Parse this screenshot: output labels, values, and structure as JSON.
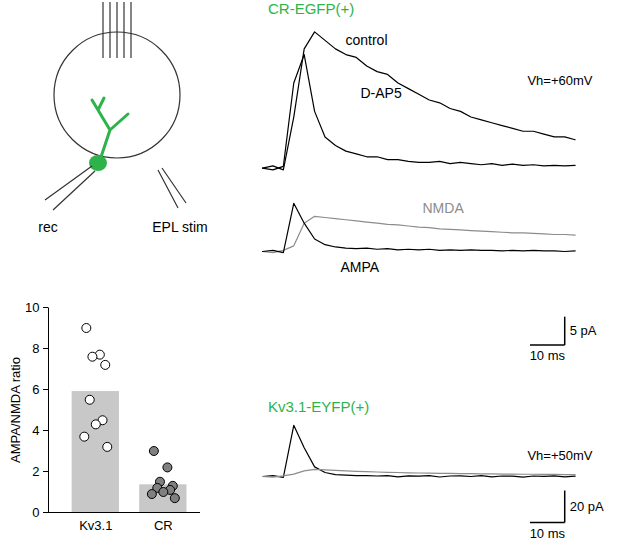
{
  "diagram": {
    "recording_label": "rec",
    "stimulation_label": "EPL stim"
  },
  "chart_data": [
    {
      "type": "bar",
      "categories": [
        "Kv3.1",
        "CR"
      ],
      "values": [
        5.9,
        1.35
      ],
      "color": "#c8c8c8",
      "individual_values": [
        [
          9.0,
          7.7,
          7.6,
          7.2,
          5.5,
          4.5,
          4.3,
          3.7,
          3.2
        ],
        [
          3.0,
          2.2,
          1.5,
          1.3,
          1.2,
          1.1,
          1.0,
          0.9,
          0.7
        ]
      ],
      "ylabel": "AMPA/NMDA ratio",
      "ylim": [
        0,
        10
      ],
      "yticks": [
        0,
        2,
        4,
        6,
        8,
        10
      ]
    },
    {
      "type": "line",
      "title": "CR-EGFP(+)",
      "x": [
        0,
        3,
        6,
        9,
        12,
        15,
        18,
        21,
        24,
        27,
        30,
        33,
        36,
        39,
        42,
        45,
        48,
        51,
        54,
        57,
        60,
        63,
        66,
        69,
        72,
        75,
        78,
        81,
        84,
        87,
        90
      ],
      "series": [
        {
          "name": "control",
          "color": "#000000",
          "values": [
            0,
            0.4,
            -0.3,
            9,
            21,
            24,
            22.5,
            21,
            20,
            19.5,
            18,
            17,
            16.5,
            15,
            14,
            13,
            12,
            11.5,
            10.5,
            10,
            9,
            8.5,
            8,
            7.5,
            7,
            6.5,
            6.5,
            6,
            5.5,
            5.5,
            5
          ]
        },
        {
          "name": "D-AP5",
          "color": "#000000",
          "values": [
            0,
            -0.3,
            0.3,
            15,
            20,
            10,
            5.5,
            4,
            3,
            2.5,
            2,
            2,
            1.5,
            1.5,
            1.2,
            1,
            1,
            1.2,
            0.8,
            1,
            0.8,
            0.6,
            0.8,
            0.5,
            0.7,
            0.5,
            0.6,
            0.4,
            0.5,
            0.4,
            0.5
          ]
        }
      ],
      "annotations": [
        "Vh=+60mV"
      ],
      "xlim": [
        0,
        95
      ],
      "ylim": [
        -2,
        26
      ],
      "tick_labels": false
    },
    {
      "type": "line",
      "x": [
        0,
        3,
        6,
        9,
        12,
        15,
        18,
        21,
        24,
        27,
        30,
        33,
        36,
        39,
        42,
        45,
        48,
        51,
        54,
        57,
        60,
        63,
        66,
        69,
        72,
        75,
        78,
        81,
        84,
        87,
        90
      ],
      "series": [
        {
          "name": "NMDA",
          "color": "#8c8c8c",
          "values": [
            0,
            -0.2,
            0.2,
            1,
            5,
            6.2,
            6,
            5.8,
            5.6,
            5.4,
            5.2,
            5,
            4.8,
            4.7,
            4.5,
            4.3,
            4.2,
            4,
            3.9,
            3.8,
            3.7,
            3.6,
            3.5,
            3.4,
            3.3,
            3.3,
            3.2,
            3.1,
            3,
            3,
            2.9
          ]
        },
        {
          "name": "AMPA",
          "color": "#000000",
          "values": [
            0,
            0.2,
            -0.2,
            8.5,
            5,
            2.2,
            1.2,
            0.8,
            0.6,
            0.5,
            0.6,
            0.4,
            0.5,
            0.3,
            0.4,
            0.3,
            0.4,
            0.2,
            0.3,
            0.2,
            0.3,
            0.2,
            0.2,
            0.1,
            0.2,
            0.1,
            0.2,
            0.1,
            0.1,
            0,
            0.1
          ]
        }
      ],
      "xlim": [
        0,
        95
      ],
      "ylim": [
        -21,
        9
      ],
      "tick_labels": false,
      "scale_bar": {
        "x": 10,
        "x_label": "10 ms",
        "y": 5,
        "y_label": "5 pA"
      }
    },
    {
      "type": "line",
      "title": "Kv3.1-EYFP(+)",
      "x": [
        0,
        3,
        6,
        9,
        12,
        15,
        18,
        21,
        24,
        27,
        30,
        33,
        36,
        39,
        42,
        45,
        48,
        51,
        54,
        57,
        60,
        63,
        66,
        69,
        72,
        75,
        78,
        81,
        84,
        87,
        90
      ],
      "series": [
        {
          "color": "#000000",
          "values": [
            0,
            0.6,
            -0.5,
            32,
            18,
            6,
            2.5,
            1.2,
            0.8,
            0.5,
            0.6,
            0.3,
            0.5,
            -0.2,
            0.4,
            0.2,
            0.5,
            -0.3,
            0.3,
            0.4,
            0,
            0.5,
            -0.2,
            0.3,
            0.2,
            -0.4,
            0.3,
            0.1,
            0.4,
            -0.2,
            0.2
          ]
        },
        {
          "color": "#8c8c8c",
          "values": [
            0,
            -0.4,
            0.4,
            1.5,
            3.5,
            4.5,
            4.2,
            3.8,
            3.5,
            3.2,
            3,
            2.8,
            2.6,
            2.5,
            2.3,
            2.2,
            2.1,
            2,
            1.9,
            1.8,
            1.8,
            1.7,
            1.6,
            1.5,
            1.5,
            1.4,
            1.4,
            1.3,
            1.3,
            1.2,
            1.2
          ]
        }
      ],
      "annotations": [
        "Vh=+50mV"
      ],
      "xlim": [
        0,
        95
      ],
      "ylim": [
        -40,
        35
      ],
      "tick_labels": false,
      "scale_bar": {
        "x": 10,
        "x_label": "10 ms",
        "y": 20,
        "y_label": "20 pA"
      }
    }
  ]
}
